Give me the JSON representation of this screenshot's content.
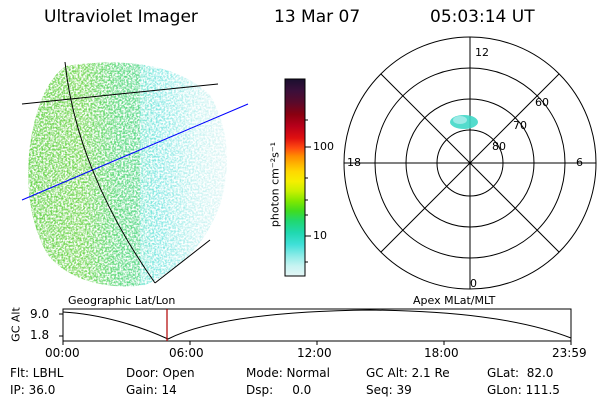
{
  "header": {
    "instrument": "Ultraviolet Imager",
    "date": "13 Mar 07",
    "time": "05:03:14 UT"
  },
  "colorbar": {
    "unit_label": "photon cm⁻²s⁻¹",
    "ticks": [
      "100",
      "10"
    ],
    "colors_top_to_bottom": [
      "#1a0f2e",
      "#3b0f3a",
      "#5a0a2a",
      "#8a0010",
      "#b8001a",
      "#e01010",
      "#ff4a10",
      "#ff8a00",
      "#ffb300",
      "#ffd800",
      "#f5ef00",
      "#c8f000",
      "#80e800",
      "#40dc20",
      "#20d870",
      "#20d8b0",
      "#40e0d8",
      "#90ece8",
      "#c8f4f2",
      "#e4f6f6"
    ]
  },
  "polar_plot": {
    "mlt_labels": {
      "top": "12",
      "left": "18",
      "right": "6",
      "bottom": "0"
    },
    "lat_labels": [
      "60",
      "70",
      "80"
    ]
  },
  "altitude_panel": {
    "y_axis_label": "GC Alt",
    "y_ticks": [
      "9.0",
      "1.8"
    ],
    "left_title": "Geographic Lat/Lon",
    "right_title": "Apex MLat/MLT",
    "x_ticks": [
      "00:00",
      "06:00",
      "12:00",
      "18:00",
      "23:59"
    ],
    "current_time_marker": "05:03"
  },
  "info_fields": {
    "flt": "Flt: LBHL",
    "door": "Door: Open",
    "mode": "Mode: Normal",
    "gc_alt": "GC Alt: 2.1 Re",
    "glat": "GLat:  82.0",
    "ip": "IP: 36.0",
    "gain": "Gain: 14",
    "dsp": "Dsp:     0.0",
    "seq": "Seq: 39",
    "glon": "GLon: 111.5"
  },
  "colors": {
    "meridian_line": "#0000ff",
    "time_marker": "#b00000",
    "polar_blob": "#40d8c8"
  }
}
